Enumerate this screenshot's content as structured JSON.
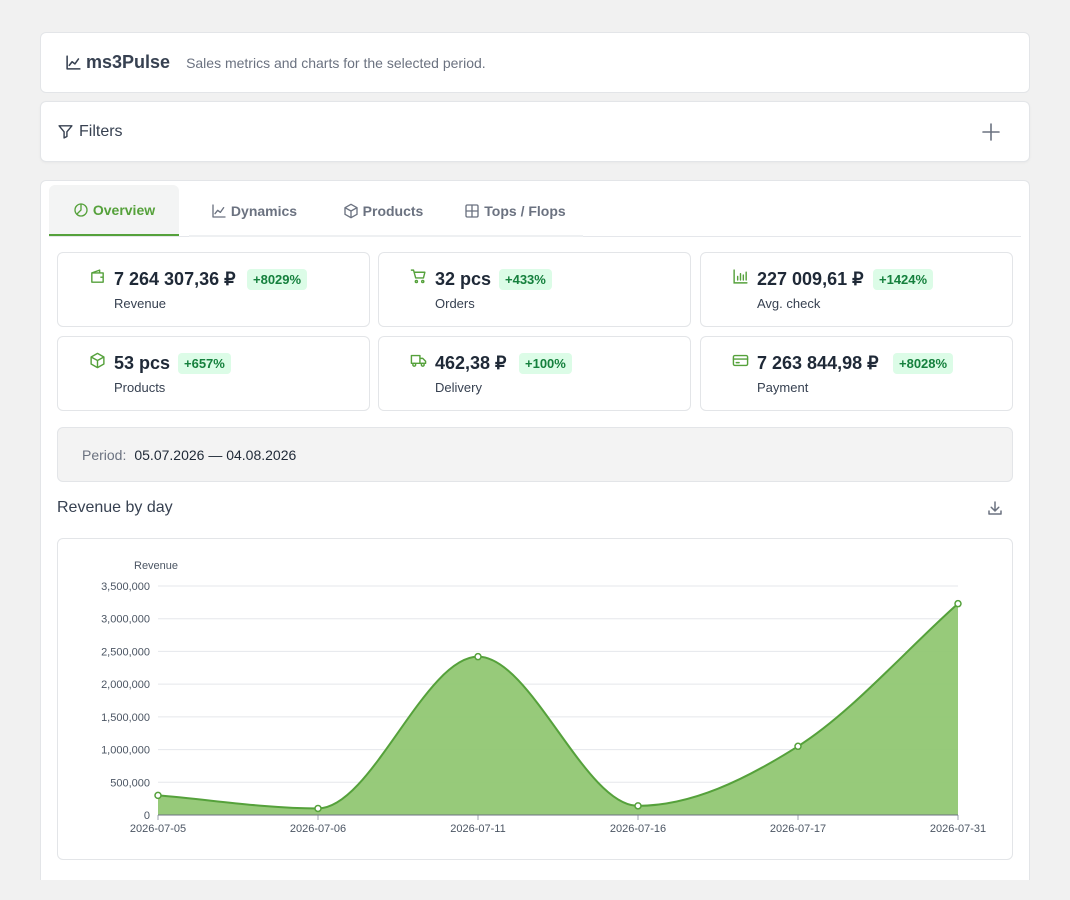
{
  "header": {
    "brand": "ms3Pulse",
    "tagline": "Sales metrics and charts for the selected period."
  },
  "filters": {
    "label": "Filters"
  },
  "tabs": [
    {
      "label": "Overview",
      "icon": "pie-chart-icon",
      "active": true
    },
    {
      "label": "Dynamics",
      "icon": "trend-chart-icon",
      "active": false
    },
    {
      "label": "Products",
      "icon": "box-icon",
      "active": false
    },
    {
      "label": "Tops / Flops",
      "icon": "table-icon",
      "active": false
    }
  ],
  "metrics": [
    {
      "value": "7 264 307,36 ₽",
      "change": "+8029%",
      "label": "Revenue",
      "icon": "wallet-icon"
    },
    {
      "value": "32 pcs",
      "change": "+433%",
      "label": "Orders",
      "icon": "cart-icon"
    },
    {
      "value": "227 009,61 ₽",
      "change": "+1424%",
      "label": "Avg. check",
      "icon": "bar-chart-icon"
    },
    {
      "value": "53 pcs",
      "change": "+657%",
      "label": "Products",
      "icon": "box-icon"
    },
    {
      "value": "462,38 ₽",
      "change": "+100%",
      "label": "Delivery",
      "icon": "truck-icon"
    },
    {
      "value": "7 263 844,98 ₽",
      "change": "+8028%",
      "label": "Payment",
      "icon": "credit-card-icon"
    }
  ],
  "period": {
    "label": "Period:",
    "value": "05.07.2026 — 04.08.2026"
  },
  "chart": {
    "title": "Revenue by day"
  },
  "colors": {
    "accent": "#55a13b",
    "area_fill": "#91c773",
    "badge_bg": "#dcfce7",
    "badge_text": "#15803d"
  },
  "chart_data": {
    "type": "area",
    "title": "",
    "xlabel": "",
    "ylabel": "Revenue",
    "categories": [
      "2026-07-05",
      "2026-07-06",
      "2026-07-11",
      "2026-07-16",
      "2026-07-17",
      "2026-07-31"
    ],
    "series": [
      {
        "values": [
          300000,
          100000,
          2420000,
          140000,
          1050000,
          3230000
        ]
      }
    ],
    "ylim": [
      0,
      3500000
    ],
    "yticks": [
      0,
      500000,
      1000000,
      1500000,
      2000000,
      2500000,
      3000000,
      3500000
    ],
    "ytick_labels": [
      "0",
      "500,000",
      "1,000,000",
      "1,500,000",
      "2,000,000",
      "2,500,000",
      "3,000,000",
      "3,500,000"
    ],
    "grid": true,
    "smooth": true
  }
}
